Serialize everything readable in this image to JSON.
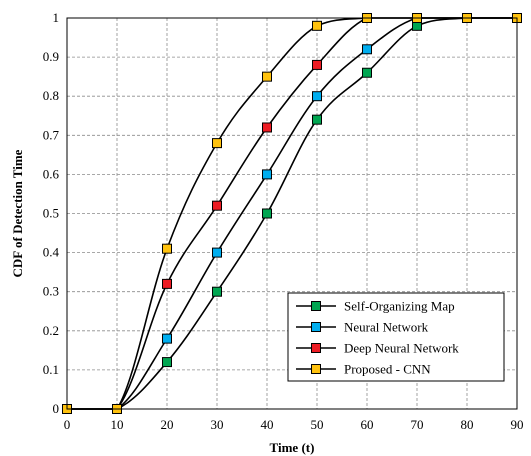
{
  "chart_data": {
    "type": "line",
    "xlabel": "Time (t)",
    "ylabel": "CDF of Detection Time",
    "xlim": [
      0,
      90
    ],
    "ylim": [
      0,
      1
    ],
    "xticks": [
      "0",
      "10",
      "20",
      "30",
      "40",
      "50",
      "60",
      "70",
      "80",
      "90"
    ],
    "yticks": [
      "0",
      "0.1",
      "0.2",
      "0.3",
      "0.4",
      "0.5",
      "0.6",
      "0.7",
      "0.8",
      "0.9",
      "1"
    ],
    "grid": true,
    "legend_position": "bottom-right",
    "x": [
      0,
      10,
      20,
      30,
      40,
      50,
      60,
      70,
      80,
      90
    ],
    "series": [
      {
        "name": "Self-Organizing Map",
        "color": "#00a651",
        "values": [
          0,
          0,
          0.12,
          0.3,
          0.5,
          0.74,
          0.86,
          0.98,
          1.0,
          1.0
        ]
      },
      {
        "name": "Neural Network",
        "color": "#00aeef",
        "values": [
          0,
          0,
          0.18,
          0.4,
          0.6,
          0.8,
          0.92,
          1.0,
          1.0,
          1.0
        ]
      },
      {
        "name": "Deep Neural Network",
        "color": "#ed1c24",
        "values": [
          0,
          0,
          0.32,
          0.52,
          0.72,
          0.88,
          1.0,
          1.0,
          1.0,
          1.0
        ]
      },
      {
        "name": "Proposed - CNN",
        "color": "#ffc20e",
        "values": [
          0,
          0,
          0.41,
          0.68,
          0.85,
          0.98,
          1.0,
          1.0,
          1.0,
          1.0
        ]
      }
    ]
  }
}
